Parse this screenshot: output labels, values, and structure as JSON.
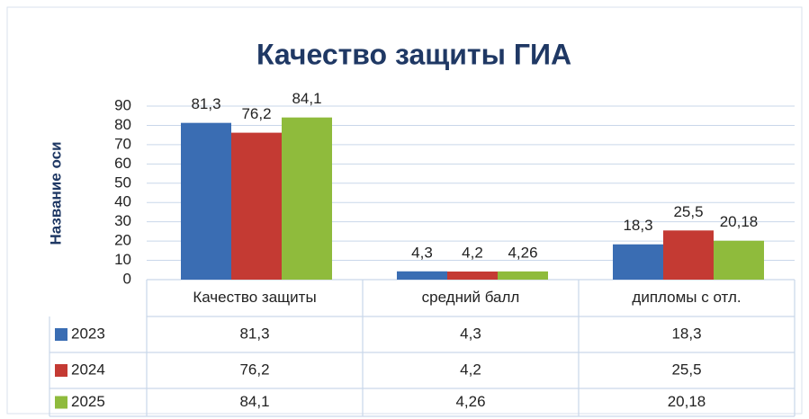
{
  "chart_data": {
    "type": "bar",
    "title": "Качество защиты ГИА",
    "y_axis_label": "Название оси",
    "categories": [
      "Качество защиты",
      "средний балл",
      "дипломы с отл."
    ],
    "series": [
      {
        "name": "2023",
        "color": "#3a6db3",
        "values": [
          81.3,
          4.3,
          18.3
        ],
        "value_labels": [
          "81,3",
          "4,3",
          "18,3"
        ]
      },
      {
        "name": "2024",
        "color": "#c43a33",
        "values": [
          76.2,
          4.2,
          25.5
        ],
        "value_labels": [
          "76,2",
          "4,2",
          "25,5"
        ]
      },
      {
        "name": "2025",
        "color": "#8fbb3c",
        "values": [
          84.1,
          4.26,
          20.18
        ],
        "value_labels": [
          "84,1",
          "4,26",
          "20,18"
        ]
      }
    ],
    "ylim": [
      0,
      90
    ],
    "yticks": [
      0,
      10,
      20,
      30,
      40,
      50,
      60,
      70,
      80,
      90
    ],
    "grid": true
  }
}
